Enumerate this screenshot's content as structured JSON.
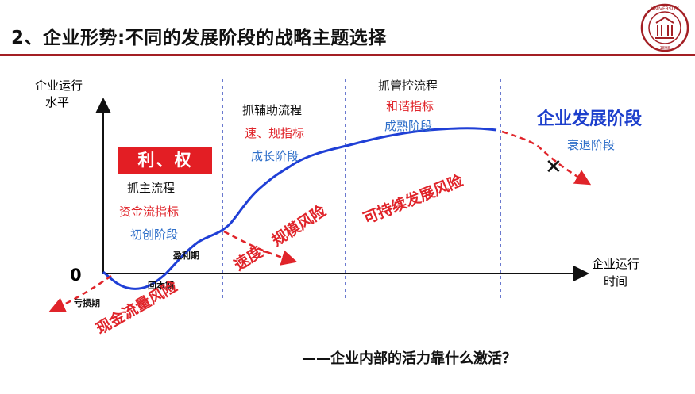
{
  "title": "2、企业形势:不同的发展阶段的战略主题选择",
  "axes": {
    "y_label_line1": "企业运行",
    "y_label_line2": "水平",
    "x_label_line1": "企业运行",
    "x_label_line2": "时间",
    "origin": "0"
  },
  "stages": {
    "startup": {
      "box": "利、权",
      "process": "抓主流程",
      "indicator": "资金流指标",
      "name": "初创阶段"
    },
    "growth": {
      "process": "抓辅助流程",
      "indicator": "速、规指标",
      "name": "成长阶段"
    },
    "mature": {
      "process": "抓管控流程",
      "indicator": "和谐指标",
      "name": "成熟阶段"
    },
    "decline": {
      "header": "企业发展阶段",
      "name": "衰退阶段",
      "mark": "✕"
    }
  },
  "curve_points": {
    "loss": "亏损期",
    "breakeven": "回本期",
    "profit": "盈利期"
  },
  "risks": {
    "cash": "现金流量风险",
    "speed_scale": "速度、规模风险",
    "sustainable": "可持续发展风险"
  },
  "question": "——企业内部的活力靠什么激活？",
  "colors": {
    "accent_red": "#e0242a",
    "curve_blue": "#1f3fd6",
    "stage_blue": "#2f6fc9",
    "rule_red": "#a31f24"
  }
}
